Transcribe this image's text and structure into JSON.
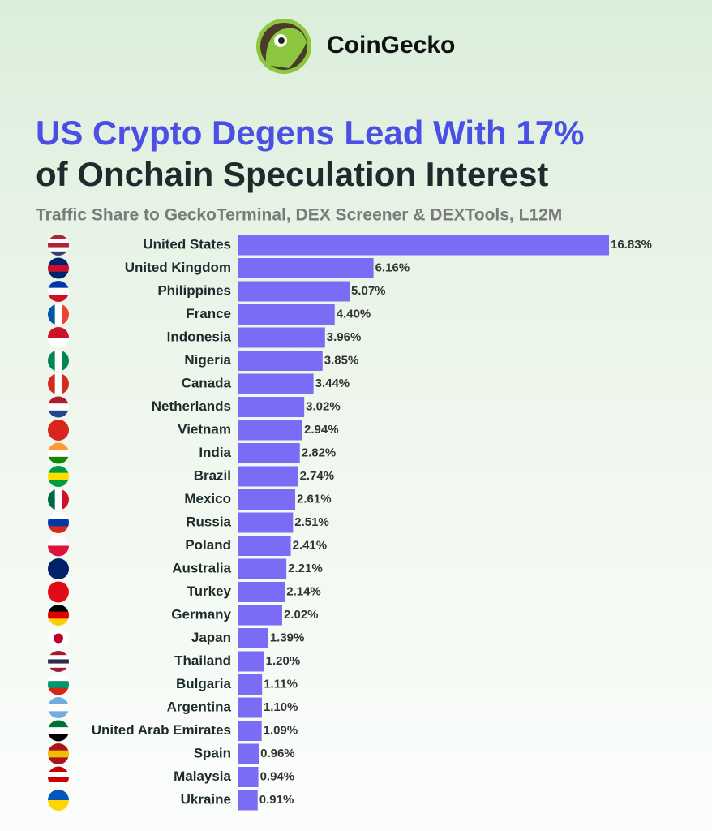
{
  "brand": "CoinGecko",
  "chart_data": {
    "type": "bar",
    "orientation": "horizontal",
    "title_lines": [
      "US Crypto Degens Lead With 17%",
      "of Onchain Speculation Interest"
    ],
    "subtitle": "Traffic Share to GeckoTerminal, DEX Screener & DEXTools, L12M",
    "color": "#7b6cf6",
    "categories": [
      "United States",
      "United Kingdom",
      "Philippines",
      "France",
      "Indonesia",
      "Nigeria",
      "Canada",
      "Netherlands",
      "Vietnam",
      "India",
      "Brazil",
      "Mexico",
      "Russia",
      "Poland",
      "Australia",
      "Turkey",
      "Germany",
      "Japan",
      "Thailand",
      "Bulgaria",
      "Argentina",
      "United Arab Emirates",
      "Spain",
      "Malaysia",
      "Ukraine"
    ],
    "values": [
      16.83,
      6.16,
      5.07,
      4.4,
      3.96,
      3.85,
      3.44,
      3.02,
      2.94,
      2.82,
      2.74,
      2.61,
      2.51,
      2.41,
      2.21,
      2.14,
      2.02,
      1.39,
      1.2,
      1.11,
      1.1,
      1.09,
      0.96,
      0.94,
      0.91
    ],
    "value_labels": [
      "16.83%",
      "6.16%",
      "5.07%",
      "4.40%",
      "3.96%",
      "3.85%",
      "3.44%",
      "3.02%",
      "2.94%",
      "2.82%",
      "2.74%",
      "2.61%",
      "2.51%",
      "2.41%",
      "2.21%",
      "2.14%",
      "2.02%",
      "1.39%",
      "1.20%",
      "1.11%",
      "1.10%",
      "1.09%",
      "0.96%",
      "0.94%",
      "0.91%"
    ]
  }
}
